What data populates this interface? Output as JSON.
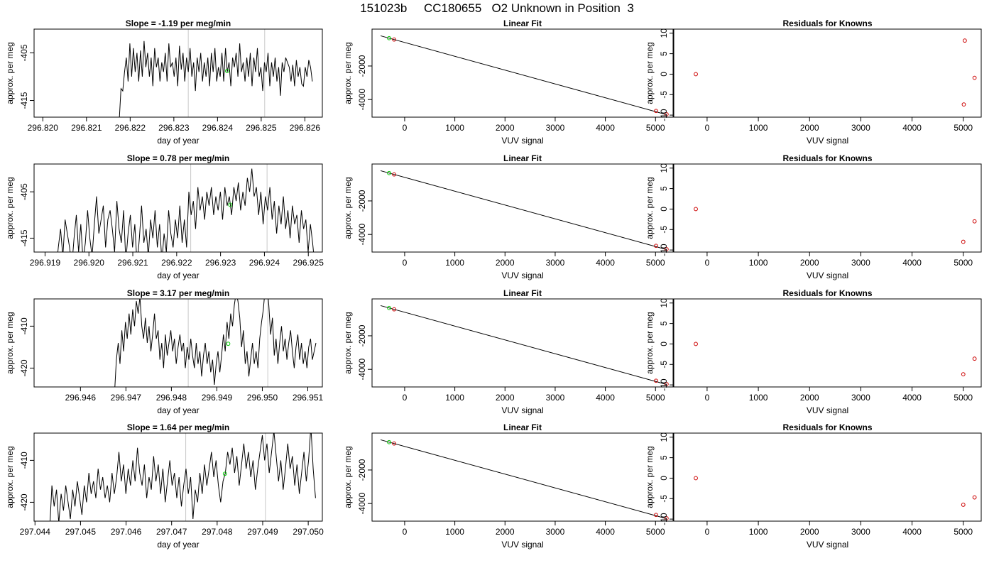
{
  "figure": {
    "title": "151023b     CC180655   O2 Unknown in Position  3"
  },
  "colors": {
    "trace": "#000000",
    "known_point": "#cc0000",
    "unknown_point": "#00cc00",
    "marker_line": "#c8c8c8"
  },
  "chart_data": [
    {
      "type": "line",
      "row": 1,
      "col": 1,
      "title": "Slope =  -1.19  per meg/min",
      "xlabel": "day of year",
      "ylabel": "approx. per meg",
      "xlim": [
        296.8198,
        296.8264
      ],
      "ylim": [
        -418.5,
        -400
      ],
      "xticks": [
        "296.820",
        "296.821",
        "296.822",
        "296.823",
        "296.824",
        "296.825",
        "296.826"
      ],
      "yticks": [
        "-405",
        "-415"
      ],
      "markers": [
        296.82333,
        296.82508
      ],
      "unknown_point": {
        "x": 296.82422,
        "y": -408.8
      },
      "trace": {
        "x_start": 296.82175,
        "x_end": 296.82617,
        "y": [
          -419,
          -412.5,
          -413,
          -409,
          -406,
          -411,
          -403,
          -410,
          -404,
          -409,
          -405,
          -411,
          -404.5,
          -410,
          -402.5,
          -408,
          -405,
          -410,
          -406,
          -412,
          -404,
          -408,
          -406,
          -411,
          -407,
          -409,
          -405,
          -411,
          -403,
          -408,
          -407,
          -410,
          -406,
          -412,
          -403.5,
          -408.5,
          -405,
          -411,
          -406,
          -409,
          -404,
          -410,
          -407,
          -413,
          -406,
          -409,
          -405,
          -411,
          -407,
          -410,
          -406,
          -412,
          -405,
          -409,
          -404,
          -411,
          -408,
          -410,
          -405,
          -411,
          -404,
          -409,
          -407,
          -412,
          -406,
          -408,
          -405,
          -410,
          -403,
          -409,
          -407,
          -411,
          -406,
          -410,
          -405,
          -412,
          -406,
          -409,
          -404,
          -410,
          -408,
          -413,
          -407,
          -409,
          -405,
          -412,
          -407,
          -410,
          -406,
          -411,
          -408,
          -414,
          -407,
          -409,
          -406,
          -407,
          -408,
          -411,
          -407.5,
          -412,
          -406.5,
          -410,
          -408,
          -411.5,
          -412,
          -408,
          -410,
          -406.5,
          -408,
          -411
        ]
      }
    },
    {
      "type": "scatter",
      "row": 1,
      "col": 2,
      "title": "Linear Fit",
      "xlabel": "VUV signal",
      "ylabel": "approx. per meg",
      "xlim": [
        -650,
        5350
      ],
      "ylim": [
        -5050,
        200
      ],
      "xticks": [
        0,
        1000,
        2000,
        3000,
        4000,
        5000
      ],
      "yticks": [
        -2000,
        -4000
      ],
      "fit_line": {
        "x": [
          -480,
          5220
        ],
        "y": [
          -200,
          -4900
        ]
      },
      "known_points": [
        {
          "x": -210,
          "y": -420
        },
        {
          "x": 5010,
          "y": -4680
        },
        {
          "x": 5220,
          "y": -4880
        }
      ],
      "unknown_point": {
        "x": -310,
        "y": -340
      }
    },
    {
      "type": "scatter",
      "row": 1,
      "col": 3,
      "title": "Residuals for Knowns",
      "xlabel": "VUV signal",
      "ylabel": "approx. per meg",
      "xlim": [
        -650,
        5350
      ],
      "ylim": [
        -10.5,
        11
      ],
      "xticks": [
        0,
        1000,
        2000,
        3000,
        4000,
        5000
      ],
      "yticks": [
        10,
        5,
        0,
        -5,
        -10
      ],
      "known_points": [
        {
          "x": -220,
          "y": 0
        },
        {
          "x": 5010,
          "y": -7.4
        },
        {
          "x": 5030,
          "y": 8.2
        },
        {
          "x": 5220,
          "y": -0.9
        }
      ]
    },
    {
      "type": "line",
      "row": 2,
      "col": 1,
      "title": "Slope =  0.78  per meg/min",
      "xlabel": "day of year",
      "ylabel": "approx. per meg",
      "xlim": [
        296.91875,
        296.92532
      ],
      "ylim": [
        -418,
        -399
      ],
      "xticks": [
        "296.919",
        "296.920",
        "296.921",
        "296.922",
        "296.923",
        "296.924",
        "296.925"
      ],
      "yticks": [
        "-405",
        "-415"
      ],
      "markers": [
        296.92232,
        296.92406
      ],
      "unknown_point": {
        "x": 296.92322,
        "y": -407.8
      },
      "trace": {
        "x_start": 296.9192,
        "x_end": 296.92515,
        "y": [
          -418,
          -422,
          -417,
          -413,
          -419,
          -411,
          -414,
          -417,
          -421,
          -415,
          -410,
          -418,
          -412,
          -420,
          -416,
          -409,
          -415,
          -419,
          -412,
          -406,
          -414,
          -411,
          -408,
          -417,
          -411,
          -409,
          -413,
          -418,
          -407,
          -413,
          -416,
          -409,
          -420,
          -414,
          -410,
          -417,
          -412,
          -421,
          -415,
          -408,
          -416,
          -413,
          -419,
          -411,
          -415,
          -409,
          -417,
          -412,
          -420,
          -414,
          -418,
          -409,
          -414,
          -417,
          -411,
          -415,
          -408,
          -416,
          -411,
          -417,
          -405,
          -410,
          -407,
          -413,
          -404,
          -409,
          -406,
          -411,
          -405,
          -408,
          -404,
          -410,
          -406,
          -409,
          -405,
          -411,
          -404,
          -408,
          -406,
          -410,
          -404,
          -407,
          -403,
          -409,
          -405,
          -408,
          -402,
          -405,
          -400,
          -406,
          -404,
          -410,
          -405,
          -412,
          -406,
          -409,
          -404,
          -411,
          -407,
          -414,
          -408,
          -412,
          -406,
          -413,
          -409,
          -415,
          -408,
          -412,
          -410,
          -416,
          -409,
          -413,
          -411,
          -418,
          -412,
          -416,
          -421
        ]
      }
    },
    {
      "type": "scatter",
      "row": 2,
      "col": 2,
      "title": "Linear Fit",
      "xlabel": "VUV signal",
      "ylabel": "approx. per meg",
      "xlim": [
        -650,
        5350
      ],
      "ylim": [
        -5050,
        200
      ],
      "xticks": [
        0,
        1000,
        2000,
        3000,
        4000,
        5000
      ],
      "yticks": [
        -2000,
        -4000
      ],
      "fit_line": {
        "x": [
          -480,
          5220
        ],
        "y": [
          -200,
          -4900
        ]
      },
      "known_points": [
        {
          "x": -210,
          "y": -420
        },
        {
          "x": 5010,
          "y": -4680
        },
        {
          "x": 5220,
          "y": -4880
        }
      ],
      "unknown_point": {
        "x": -310,
        "y": -340
      }
    },
    {
      "type": "scatter",
      "row": 2,
      "col": 3,
      "title": "Residuals for Knowns",
      "xlabel": "VUV signal",
      "ylabel": "approx. per meg",
      "xlim": [
        -650,
        5350
      ],
      "ylim": [
        -10.5,
        11
      ],
      "xticks": [
        0,
        1000,
        2000,
        3000,
        4000,
        5000
      ],
      "yticks": [
        10,
        5,
        0,
        -5,
        -10
      ],
      "known_points": [
        {
          "x": -220,
          "y": 0
        },
        {
          "x": 5000,
          "y": -8.0
        },
        {
          "x": 5220,
          "y": -3.0
        }
      ]
    },
    {
      "type": "line",
      "row": 3,
      "col": 1,
      "title": "Slope =  3.17  per meg/min",
      "xlabel": "day of year",
      "ylabel": "approx. per meg",
      "xlim": [
        296.94498,
        296.95132
      ],
      "ylim": [
        -424.5,
        -403.5
      ],
      "xticks": [
        "296.946",
        "296.947",
        "296.948",
        "296.949",
        "296.950",
        "296.951"
      ],
      "yticks": [
        "-410",
        "-420"
      ],
      "markers": [
        296.94837,
        296.95012
      ],
      "unknown_point": {
        "x": 296.94925,
        "y": -414.2
      },
      "trace": {
        "x_start": 296.94675,
        "x_end": 296.95118,
        "y": [
          -426,
          -418,
          -414,
          -419,
          -411,
          -416,
          -409,
          -413,
          -407,
          -412,
          -406,
          -410,
          -404,
          -407,
          -403,
          -410,
          -413,
          -408,
          -414,
          -410,
          -416,
          -412,
          -407,
          -413,
          -411,
          -418,
          -414,
          -420,
          -412,
          -417,
          -414,
          -411,
          -416,
          -413,
          -419,
          -415,
          -412,
          -416,
          -414,
          -420,
          -415,
          -418,
          -413,
          -417,
          -420,
          -414,
          -419,
          -416,
          -422,
          -417,
          -414,
          -419,
          -416,
          -421,
          -418,
          -424,
          -419,
          -416,
          -421,
          -417,
          -412,
          -416,
          -409,
          -413,
          -407,
          -410,
          -405,
          -402,
          -404,
          -408,
          -415,
          -411,
          -419,
          -416,
          -422,
          -418,
          -414,
          -419,
          -416,
          -420,
          -413,
          -409,
          -406,
          -401,
          -400,
          -405,
          -412,
          -408,
          -417,
          -413,
          -419,
          -414,
          -410,
          -416,
          -413,
          -418,
          -414,
          -411,
          -416,
          -420,
          -415,
          -412,
          -418,
          -414,
          -419,
          -416,
          -420,
          -415,
          -413,
          -418,
          -416,
          -414
        ]
      }
    },
    {
      "type": "scatter",
      "row": 3,
      "col": 2,
      "title": "Linear Fit",
      "xlabel": "VUV signal",
      "ylabel": "approx. per meg",
      "xlim": [
        -650,
        5350
      ],
      "ylim": [
        -5050,
        200
      ],
      "xticks": [
        0,
        1000,
        2000,
        3000,
        4000,
        5000
      ],
      "yticks": [
        -2000,
        -4000
      ],
      "fit_line": {
        "x": [
          -480,
          5220
        ],
        "y": [
          -200,
          -4900
        ]
      },
      "known_points": [
        {
          "x": -210,
          "y": -420
        },
        {
          "x": 5010,
          "y": -4680
        },
        {
          "x": 5220,
          "y": -4880
        }
      ],
      "unknown_point": {
        "x": -310,
        "y": -340
      }
    },
    {
      "type": "scatter",
      "row": 3,
      "col": 3,
      "title": "Residuals for Knowns",
      "xlabel": "VUV signal",
      "ylabel": "approx. per meg",
      "xlim": [
        -650,
        5350
      ],
      "ylim": [
        -10.5,
        11
      ],
      "xticks": [
        0,
        1000,
        2000,
        3000,
        4000,
        5000
      ],
      "yticks": [
        10,
        5,
        0,
        -5,
        -10
      ],
      "known_points": [
        {
          "x": -220,
          "y": 0
        },
        {
          "x": 5000,
          "y": -7.4
        },
        {
          "x": 5220,
          "y": -3.6
        }
      ]
    },
    {
      "type": "line",
      "row": 4,
      "col": 1,
      "title": "Slope =  1.64  per meg/min",
      "xlabel": "day of year",
      "ylabel": "approx. per meg",
      "xlim": [
        297.04398,
        297.05031
      ],
      "ylim": [
        -424.5,
        -403.5
      ],
      "xticks": [
        "297.044",
        "297.045",
        "297.046",
        "297.047",
        "297.048",
        "297.049",
        "297.050"
      ],
      "yticks": [
        "-410",
        "-420"
      ],
      "markers": [
        297.04731,
        297.04906
      ],
      "unknown_point": {
        "x": 297.04817,
        "y": -413.2
      },
      "trace": {
        "x_start": 297.04432,
        "x_end": 297.05016,
        "y": [
          -427,
          -416,
          -421,
          -417,
          -425,
          -418,
          -422,
          -416,
          -420,
          -424,
          -417,
          -421,
          -415,
          -419,
          -423,
          -416,
          -420,
          -413,
          -418,
          -415,
          -419,
          -412,
          -417,
          -414,
          -419,
          -416,
          -420,
          -413,
          -418,
          -414,
          -408,
          -415,
          -411,
          -418,
          -412,
          -416,
          -410,
          -415,
          -407,
          -413,
          -416,
          -411,
          -419,
          -414,
          -417,
          -409,
          -415,
          -411,
          -418,
          -412,
          -420,
          -415,
          -410,
          -416,
          -413,
          -419,
          -414,
          -421,
          -416,
          -412,
          -418,
          -414,
          -424,
          -417,
          -420,
          -413,
          -418,
          -411,
          -416,
          -412,
          -408,
          -414,
          -410,
          -416,
          -420,
          -415,
          -413,
          -408,
          -411,
          -407,
          -413,
          -409,
          -416,
          -411,
          -406,
          -412,
          -408,
          -414,
          -410,
          -417,
          -412,
          -408,
          -404,
          -410,
          -406,
          -413,
          -408,
          -403,
          -409,
          -415,
          -410,
          -417,
          -412,
          -406,
          -412,
          -409,
          -416,
          -411,
          -418,
          -413,
          -408,
          -415,
          -410,
          -402,
          -412,
          -419
        ]
      }
    },
    {
      "type": "scatter",
      "row": 4,
      "col": 2,
      "title": "Linear Fit",
      "xlabel": "VUV signal",
      "ylabel": "approx. per meg",
      "xlim": [
        -650,
        5350
      ],
      "ylim": [
        -5050,
        200
      ],
      "xticks": [
        0,
        1000,
        2000,
        3000,
        4000,
        5000
      ],
      "yticks": [
        -2000,
        -4000
      ],
      "fit_line": {
        "x": [
          -480,
          5220
        ],
        "y": [
          -200,
          -4900
        ]
      },
      "known_points": [
        {
          "x": -210,
          "y": -420
        },
        {
          "x": 5010,
          "y": -4680
        },
        {
          "x": 5220,
          "y": -4880
        }
      ],
      "unknown_point": {
        "x": -310,
        "y": -340
      }
    },
    {
      "type": "scatter",
      "row": 4,
      "col": 3,
      "title": "Residuals for Knowns",
      "xlabel": "VUV signal",
      "ylabel": "approx. per meg",
      "xlim": [
        -650,
        5350
      ],
      "ylim": [
        -10.5,
        11
      ],
      "xticks": [
        0,
        1000,
        2000,
        3000,
        4000,
        5000
      ],
      "yticks": [
        10,
        5,
        0,
        -5,
        -10
      ],
      "known_points": [
        {
          "x": -220,
          "y": 0
        },
        {
          "x": 5000,
          "y": -6.5
        },
        {
          "x": 5220,
          "y": -4.7
        }
      ]
    }
  ]
}
